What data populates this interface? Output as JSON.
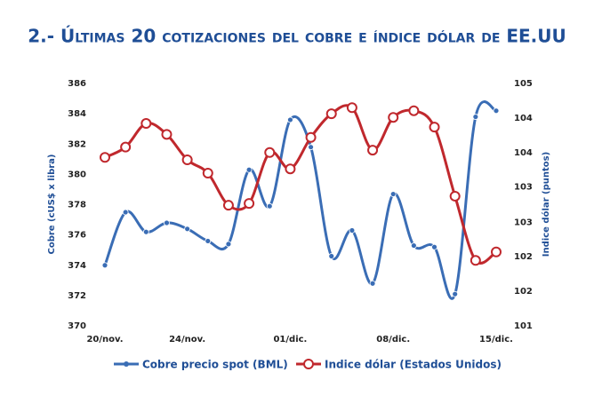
{
  "chart_data": {
    "type": "line",
    "title": "2.- Últimas 20 cotizaciones del cobre e índice dólar de EE.UU",
    "ylabel": "Cobre (cUS$ x libra)",
    "y2label": "Indice dólar (puntos)",
    "categories": [
      "20/nov.",
      null,
      null,
      null,
      "24/nov.",
      null,
      null,
      null,
      null,
      "01/dic.",
      null,
      null,
      null,
      null,
      "08/dic.",
      null,
      null,
      null,
      null,
      "15/dic."
    ],
    "series": [
      {
        "name": "Cobre precio spot (BML)",
        "color": "#3a6db5",
        "axis": "y",
        "values": [
          374.0,
          377.5,
          376.2,
          376.8,
          376.4,
          375.6,
          375.4,
          380.3,
          377.9,
          383.6,
          381.8,
          374.6,
          376.3,
          372.8,
          378.7,
          375.3,
          375.2,
          372.1,
          383.8,
          384.2
        ]
      },
      {
        "name": "Indice dólar (Estados Unidos)",
        "color": "#c0282d",
        "axis": "y2",
        "values": [
          103.78,
          103.95,
          104.34,
          104.16,
          103.74,
          103.52,
          102.99,
          103.02,
          103.86,
          103.59,
          104.11,
          104.5,
          104.6,
          103.9,
          104.44,
          104.55,
          104.28,
          103.14,
          102.08,
          102.22
        ]
      }
    ],
    "ylim": [
      370,
      386
    ],
    "yticks": [
      370,
      372,
      374,
      376,
      378,
      380,
      382,
      384,
      386
    ],
    "y2lim": [
      101,
      105
    ],
    "y2ticks": [
      101,
      {
        "value": 101.57,
        "label": "102"
      },
      {
        "value": 102.14,
        "label": "102"
      },
      {
        "value": 102.71,
        "label": "103"
      },
      {
        "value": 103.29,
        "label": "103"
      },
      {
        "value": 103.86,
        "label": "104"
      },
      {
        "value": 104.43,
        "label": "104"
      },
      105
    ],
    "grid": false,
    "legend": "bottom"
  }
}
